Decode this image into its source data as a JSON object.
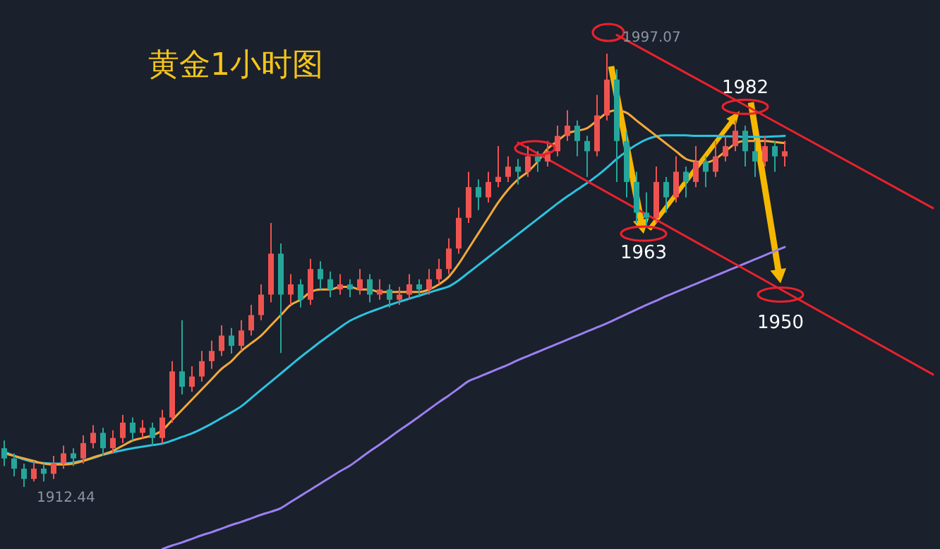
{
  "chart_data": {
    "type": "candlestick",
    "title": "黄金1小时图",
    "categories": [
      null,
      null,
      null,
      null,
      null,
      null,
      null,
      null,
      null,
      null,
      null,
      null,
      null,
      null,
      null,
      null,
      null,
      null,
      null,
      null,
      null,
      null,
      null,
      null,
      null,
      null,
      null,
      null,
      null,
      null,
      null,
      null,
      null,
      null,
      null,
      null,
      null,
      null,
      null,
      null,
      null,
      null,
      null,
      null,
      null,
      null,
      null,
      null,
      null,
      null,
      null,
      null,
      null,
      null,
      null,
      null,
      null,
      null,
      null,
      null,
      null,
      null,
      null,
      null,
      null,
      null,
      null,
      null,
      null,
      null,
      null,
      null,
      null,
      null,
      null,
      null,
      null,
      null,
      null,
      null,
      null,
      null,
      null,
      null,
      null,
      null,
      null,
      null,
      null,
      null,
      null,
      null,
      null,
      null,
      null
    ],
    "ohlc": [
      [
        1920,
        1921.5,
        1916.5,
        1918
      ],
      [
        1918,
        1919,
        1914.5,
        1916
      ],
      [
        1916,
        1917,
        1912.44,
        1914
      ],
      [
        1914,
        1917.5,
        1913.5,
        1916
      ],
      [
        1916,
        1917,
        1913.5,
        1915
      ],
      [
        1915,
        1918.5,
        1914,
        1917
      ],
      [
        1917,
        1920.5,
        1916,
        1919
      ],
      [
        1919,
        1920,
        1916.5,
        1918
      ],
      [
        1918,
        1922.5,
        1917,
        1921
      ],
      [
        1921,
        1924.5,
        1920,
        1923
      ],
      [
        1923,
        1924,
        1918.5,
        1920
      ],
      [
        1920,
        1923.5,
        1919,
        1922
      ],
      [
        1922,
        1926.5,
        1921,
        1925
      ],
      [
        1925,
        1926,
        1921.5,
        1923
      ],
      [
        1923,
        1925.5,
        1922,
        1924
      ],
      [
        1924,
        1925,
        1920.5,
        1922
      ],
      [
        1922,
        1927.5,
        1921,
        1926
      ],
      [
        1926,
        1937,
        1925,
        1935
      ],
      [
        1935,
        1945,
        1930.5,
        1932
      ],
      [
        1932,
        1936,
        1931,
        1934
      ],
      [
        1934,
        1939,
        1933,
        1937
      ],
      [
        1937,
        1941,
        1935.5,
        1939
      ],
      [
        1939,
        1944,
        1938,
        1942
      ],
      [
        1942,
        1943.5,
        1938.5,
        1940
      ],
      [
        1940,
        1945,
        1939,
        1943
      ],
      [
        1943,
        1948,
        1942,
        1946
      ],
      [
        1946,
        1952,
        1945,
        1950
      ],
      [
        1950,
        1964,
        1948.5,
        1958
      ],
      [
        1958,
        1960,
        1938.6,
        1950
      ],
      [
        1950,
        1954,
        1948,
        1952
      ],
      [
        1952,
        1953,
        1947.5,
        1949
      ],
      [
        1949,
        1957,
        1948,
        1955
      ],
      [
        1955,
        1956.5,
        1951,
        1953
      ],
      [
        1953,
        1954.5,
        1949.5,
        1951
      ],
      [
        1951,
        1954,
        1950,
        1952
      ],
      [
        1952,
        1953,
        1949.5,
        1951
      ],
      [
        1951,
        1955,
        1950,
        1953
      ],
      [
        1953,
        1954,
        1948.5,
        1950
      ],
      [
        1950,
        1953,
        1949,
        1951
      ],
      [
        1951,
        1952,
        1947.5,
        1949
      ],
      [
        1949,
        1951.5,
        1948,
        1950
      ],
      [
        1950,
        1954,
        1949,
        1952
      ],
      [
        1952,
        1953,
        1949.5,
        1951
      ],
      [
        1951,
        1955,
        1950,
        1953
      ],
      [
        1953,
        1957,
        1952,
        1955
      ],
      [
        1955,
        1961,
        1954,
        1959
      ],
      [
        1959,
        1967,
        1958,
        1965
      ],
      [
        1965,
        1974,
        1964,
        1971
      ],
      [
        1971,
        1972.5,
        1966.5,
        1969
      ],
      [
        1969,
        1974,
        1968,
        1972
      ],
      [
        1972,
        1979,
        1971,
        1973
      ],
      [
        1973,
        1977,
        1972,
        1975
      ],
      [
        1975,
        1976.5,
        1971.5,
        1974
      ],
      [
        1974,
        1979,
        1973,
        1977
      ],
      [
        1977,
        1978,
        1974,
        1976
      ],
      [
        1976,
        1980,
        1975,
        1978
      ],
      [
        1978,
        1983,
        1977,
        1981
      ],
      [
        1981,
        1986,
        1980,
        1983
      ],
      [
        1983,
        1984,
        1977,
        1980
      ],
      [
        1980,
        1981,
        1973,
        1978
      ],
      [
        1978,
        1989,
        1977,
        1985
      ],
      [
        1985,
        1997.07,
        1984,
        1992
      ],
      [
        1992,
        1994,
        1972,
        1980
      ],
      [
        1980,
        1982,
        1969,
        1972
      ],
      [
        1972,
        1974,
        1964,
        1966
      ],
      [
        1966,
        1970,
        1963,
        1965
      ],
      [
        1965,
        1975,
        1964,
        1972
      ],
      [
        1972,
        1973,
        1966,
        1969
      ],
      [
        1969,
        1977,
        1968,
        1974
      ],
      [
        1974,
        1975,
        1969,
        1972
      ],
      [
        1972,
        1979,
        1971,
        1976
      ],
      [
        1976,
        1977,
        1971,
        1974
      ],
      [
        1974,
        1980,
        1973,
        1977
      ],
      [
        1977,
        1981,
        1976,
        1979
      ],
      [
        1979,
        1984,
        1978,
        1982
      ],
      [
        1982,
        1983,
        1975,
        1978
      ],
      [
        1978,
        1980,
        1973,
        1976
      ],
      [
        1976,
        1981,
        1975,
        1979
      ],
      [
        1979,
        1980,
        1974,
        1977
      ],
      [
        1977,
        1980,
        1975,
        1978
      ],
      null,
      null,
      null,
      null,
      null,
      null,
      null,
      null,
      null,
      null,
      null,
      null,
      null,
      null,
      null
    ],
    "colors": [
      "#26a69a",
      "#26a69a",
      "#26a69a",
      "#ef5350",
      "#26a69a",
      "#ef5350",
      "#ef5350",
      "#26a69a",
      "#ef5350",
      "#ef5350",
      "#26a69a",
      "#ef5350",
      "#ef5350",
      "#26a69a",
      "#ef5350",
      "#26a69a",
      "#ef5350",
      "#ef5350",
      "#26a69a",
      "#ef5350",
      "#ef5350",
      "#ef5350",
      "#ef5350",
      "#26a69a",
      "#ef5350",
      "#ef5350",
      "#ef5350",
      "#ef5350",
      "#26a69a",
      "#ef5350",
      "#26a69a",
      "#ef5350",
      "#26a69a",
      "#26a69a",
      "#ef5350",
      "#26a69a",
      "#ef5350",
      "#26a69a",
      "#ef5350",
      "#26a69a",
      "#ef5350",
      "#ef5350",
      "#26a69a",
      "#ef5350",
      "#ef5350",
      "#ef5350",
      "#ef5350",
      "#ef5350",
      "#26a69a",
      "#ef5350",
      "#ef5350",
      "#ef5350",
      "#26a69a",
      "#ef5350",
      "#26a69a",
      "#ef5350",
      "#ef5350",
      "#ef5350",
      "#26a69a",
      "#26a69a",
      "#ef5350",
      "#ef5350",
      "#26a69a",
      "#26a69a",
      "#26a69a",
      "#26a69a",
      "#ef5350",
      "#26a69a",
      "#ef5350",
      "#26a69a",
      "#ef5350",
      "#26a69a",
      "#ef5350",
      "#ef5350",
      "#ef5350",
      "#26a69a",
      "#26a69a",
      "#ef5350",
      "#26a69a",
      "#ef5350",
      null,
      null,
      null,
      null,
      null,
      null,
      null,
      null,
      null,
      null,
      null,
      null,
      null,
      null,
      null
    ],
    "series": [
      {
        "type": "line",
        "color": "#9b80f0",
        "values": [
          null,
          null,
          null,
          null,
          null,
          null,
          null,
          null,
          null,
          null,
          null,
          null,
          null,
          null,
          null,
          null,
          1900.3,
          1901,
          1901.6,
          1902.3,
          1903,
          1903.6,
          1904.3,
          1905,
          1905.6,
          1906.3,
          1907,
          1907.6,
          1908.3,
          1909.5,
          1910.7,
          1911.9,
          1913.1,
          1914.3,
          1915.5,
          1916.6,
          1918,
          1919.4,
          1920.7,
          1922.1,
          1923.5,
          1924.8,
          1926.2,
          1927.6,
          1929,
          1930.3,
          1931.7,
          1933.1,
          1933.9,
          1934.7,
          1935.5,
          1936.3,
          1937.2,
          1938,
          1938.8,
          1939.6,
          1940.4,
          1941.2,
          1942,
          1942.8,
          1943.6,
          1944.4,
          1945.3,
          1946.2,
          1947.1,
          1948,
          1948.8,
          1949.7,
          1950.5,
          1951.3,
          1952.1,
          1952.9,
          1953.7,
          1954.5,
          1955.3,
          1956.1,
          1956.9,
          1957.7,
          1958.5,
          1959.3,
          null,
          null,
          null,
          null,
          null,
          null,
          null,
          null,
          null,
          null,
          null,
          null,
          null,
          null,
          null
        ]
      },
      {
        "type": "line",
        "color": "#2cc3e0",
        "values": [
          1919.3,
          1918.5,
          1917.8,
          1917.3,
          1917.1,
          1917,
          1917,
          1917.2,
          1917.6,
          1918.1,
          1918.7,
          1919.2,
          1919.6,
          1920,
          1920.3,
          1920.6,
          1920.9,
          1921.5,
          1922.2,
          1922.9,
          1923.8,
          1924.8,
          1925.9,
          1927,
          1928.2,
          1929.8,
          1931.4,
          1933,
          1934.6,
          1936.2,
          1937.8,
          1939.3,
          1940.8,
          1942.2,
          1943.6,
          1944.9,
          1945.8,
          1946.6,
          1947.3,
          1948,
          1948.6,
          1949.2,
          1949.8,
          1950.4,
          1951,
          1951.6,
          1952.8,
          1954.3,
          1955.8,
          1957.3,
          1958.8,
          1960.3,
          1961.8,
          1963.3,
          1964.8,
          1966.3,
          1967.8,
          1969.2,
          1970.5,
          1971.8,
          1973.2,
          1974.8,
          1976.5,
          1978,
          1979.3,
          1980.3,
          1980.9,
          1981.1,
          1981.1,
          1981.1,
          1981,
          1981,
          1981,
          1980.9,
          1980.9,
          1980.8,
          1980.8,
          1980.8,
          1980.9,
          1981,
          null,
          null,
          null,
          null,
          null,
          null,
          null,
          null,
          null,
          null,
          null,
          null,
          null,
          null,
          null
        ]
      },
      {
        "type": "line",
        "color": "#f5a83a",
        "values": [
          1919,
          1918.5,
          1918,
          1917.5,
          1917,
          1916.8,
          1916.8,
          1917,
          1917.5,
          1918.2,
          1918.8,
          1919.5,
          1920.5,
          1921.5,
          1922,
          1922.5,
          1923.5,
          1925.5,
          1927.5,
          1929.5,
          1931.5,
          1933.5,
          1935.5,
          1937,
          1939,
          1940.5,
          1942,
          1944,
          1946,
          1948,
          1949,
          1950.5,
          1951,
          1951,
          1951.5,
          1951.5,
          1951,
          1951,
          1950.5,
          1950.5,
          1950.5,
          1950.5,
          1950.5,
          1951,
          1952,
          1953.5,
          1956,
          1959,
          1962,
          1965,
          1968,
          1970.5,
          1972.5,
          1974,
          1976,
          1978.5,
          1980,
          1981.5,
          1982,
          1982.5,
          1984,
          1985.5,
          1986,
          1985.5,
          1984,
          1982.5,
          1981,
          1979.5,
          1978,
          1976.5,
          1976,
          1975.8,
          1976.5,
          1978,
          1979.5,
          1980,
          1980,
          1980,
          1979.8,
          1979.6,
          null,
          null,
          null,
          null,
          null,
          null,
          null,
          null,
          null,
          null,
          null,
          null,
          null,
          null,
          null
        ]
      },
      {
        "type": "line",
        "color": "#e8222e",
        "values": [
          null,
          null,
          null,
          null,
          null,
          null,
          null,
          null,
          null,
          null,
          null,
          null,
          null,
          null,
          null,
          null,
          null,
          null,
          null,
          null,
          null,
          null,
          null,
          null,
          null,
          null,
          null,
          null,
          null,
          null,
          null,
          null,
          null,
          null,
          null,
          null,
          null,
          null,
          null,
          null,
          null,
          null,
          null,
          null,
          null,
          null,
          null,
          null,
          null,
          null,
          null,
          null,
          null,
          null,
          null,
          null,
          null,
          null,
          null,
          null,
          null,
          null,
          2000.7,
          null,
          null,
          null,
          null,
          null,
          null,
          null,
          null,
          null,
          null,
          null,
          null,
          null,
          null,
          null,
          null,
          null,
          null,
          null,
          null,
          null,
          null,
          null,
          null,
          null,
          null,
          null,
          null,
          null,
          null,
          null,
          1966.9
        ]
      },
      {
        "type": "line",
        "color": "#e8222e",
        "values": [
          null,
          null,
          null,
          null,
          null,
          null,
          null,
          null,
          null,
          null,
          null,
          null,
          null,
          null,
          null,
          null,
          null,
          null,
          null,
          null,
          null,
          null,
          null,
          null,
          null,
          null,
          null,
          null,
          null,
          null,
          null,
          null,
          null,
          null,
          null,
          null,
          null,
          null,
          null,
          null,
          null,
          null,
          null,
          null,
          null,
          null,
          null,
          null,
          null,
          null,
          null,
          null,
          1979.7,
          null,
          null,
          null,
          null,
          null,
          null,
          null,
          null,
          null,
          null,
          null,
          null,
          null,
          null,
          null,
          null,
          null,
          null,
          null,
          null,
          null,
          null,
          null,
          null,
          null,
          null,
          null,
          null,
          null,
          null,
          null,
          null,
          null,
          null,
          null,
          null,
          null,
          null,
          null,
          null,
          null,
          1934.4
        ]
      }
    ],
    "annotations": [
      {
        "text": "1997.07",
        "y": 1997.07
      },
      {
        "text": "1963",
        "y": 1963
      },
      {
        "text": "1982",
        "y": 1982
      },
      {
        "text": "1950",
        "y": 1950
      },
      "1912.44"
    ]
  }
}
